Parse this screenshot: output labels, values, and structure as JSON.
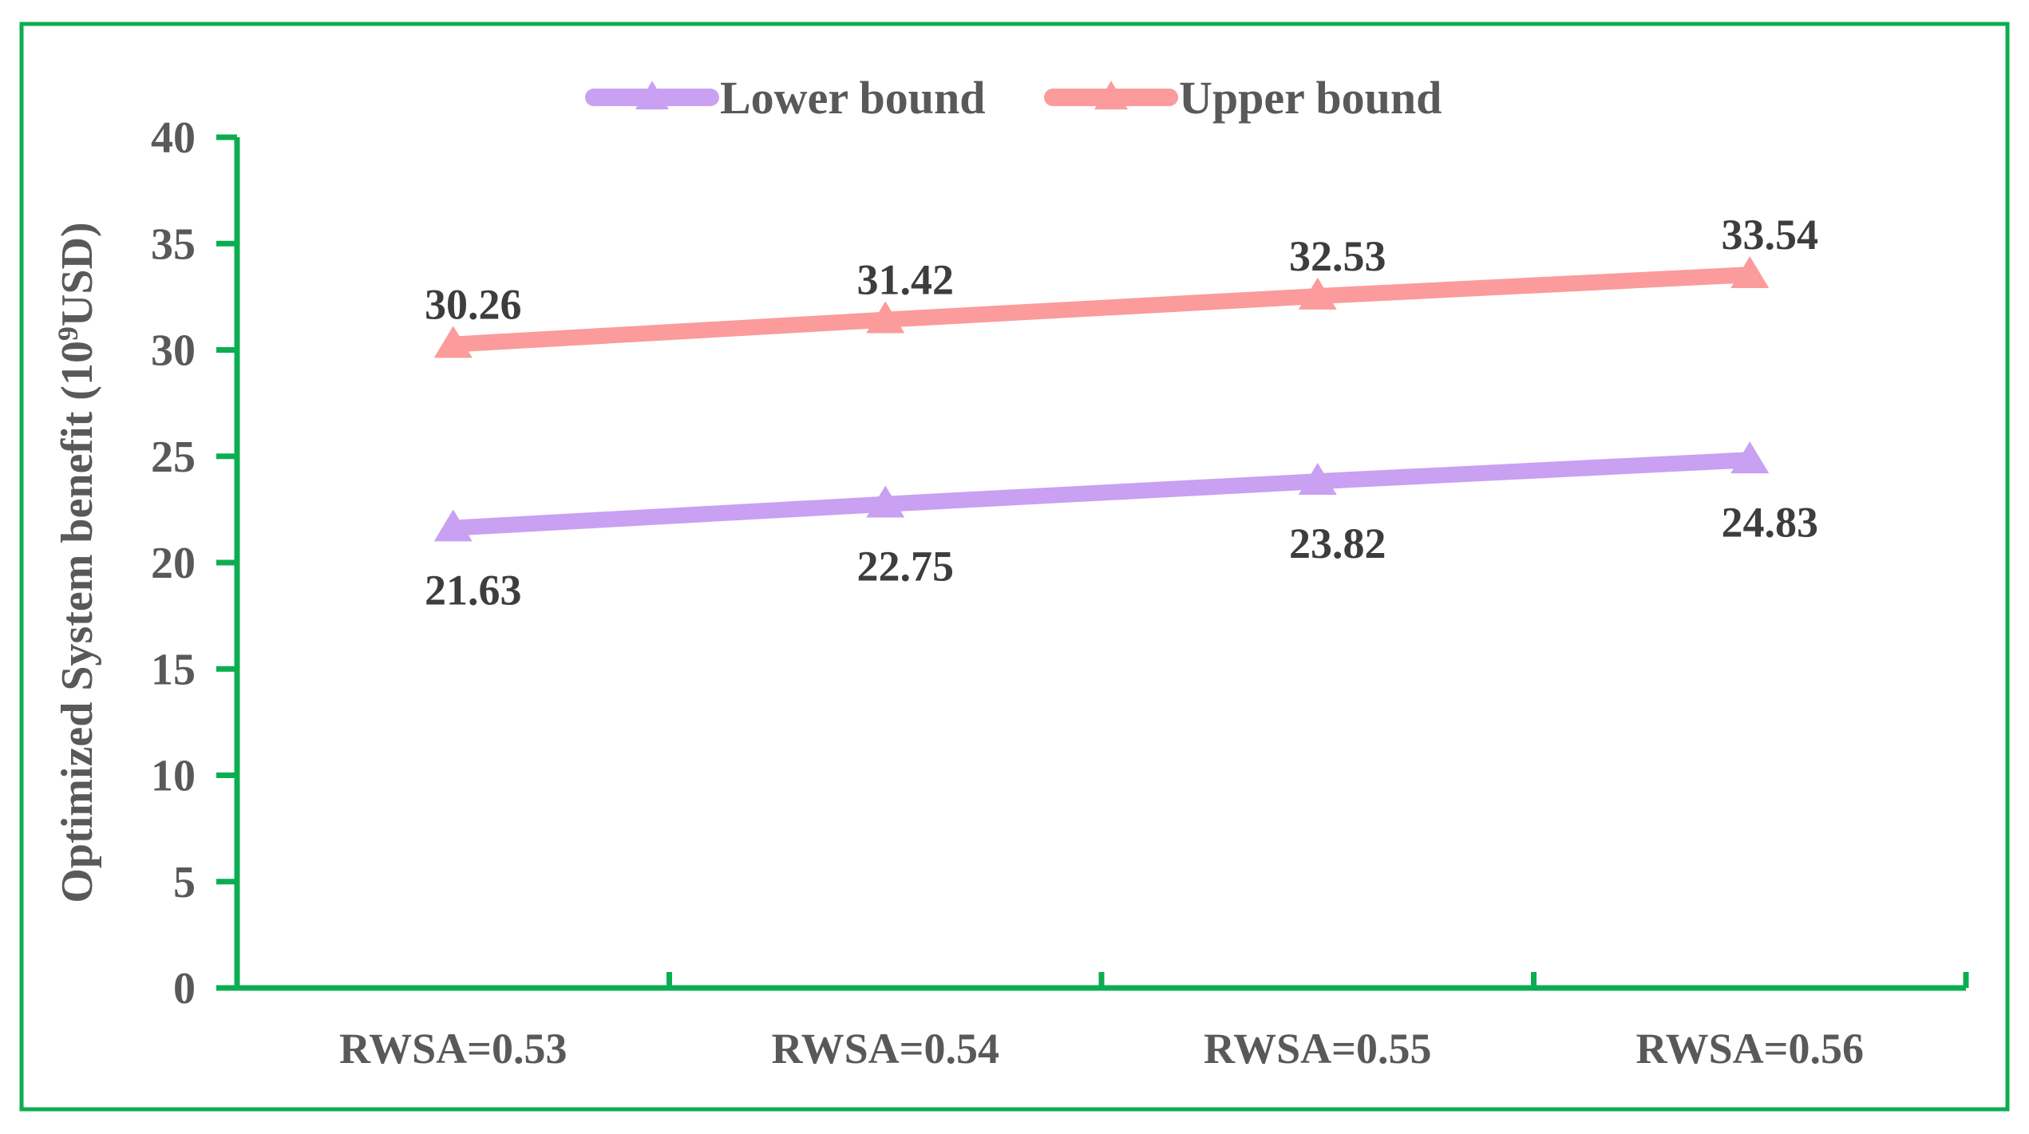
{
  "chart_data": {
    "type": "line",
    "title": "",
    "categories": [
      "RWSA=0.53",
      "RWSA=0.54",
      "RWSA=0.55",
      "RWSA=0.56"
    ],
    "series": [
      {
        "name": "Lower bound",
        "values": [
          21.63,
          22.75,
          23.82,
          24.83
        ],
        "color": "#c9a0f2",
        "marker": "triangle-up",
        "label_position": "below"
      },
      {
        "name": "Upper bound",
        "values": [
          30.26,
          31.42,
          32.53,
          33.54
        ],
        "color": "#fb9b9b",
        "marker": "triangle-up",
        "label_position": "above"
      }
    ],
    "xlabel": "",
    "ylabel_prefix": "Optimized  System benefit (10",
    "ylabel_sup": "9",
    "ylabel_suffix": "USD)",
    "yticks": [
      "40",
      "35",
      "30",
      "25",
      "20",
      "15",
      "10",
      "5",
      "0"
    ],
    "ylim": [
      0,
      40
    ],
    "grid": false,
    "legend_position": "top-center",
    "colors": {
      "axis_green": "#0cad51",
      "frame_green": "#0cad51",
      "tick_text": "#595959",
      "data_label_text": "#3d3d3d",
      "background": "#ffffff"
    }
  }
}
